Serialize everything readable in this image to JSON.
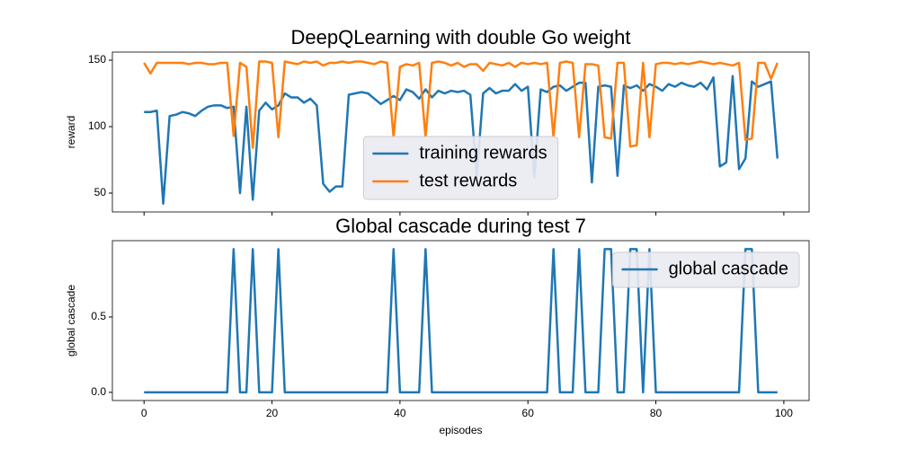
{
  "chart_data": [
    {
      "type": "line",
      "title": "DeepQLearning with double Go weight",
      "ylabel": "reward",
      "x": [
        0,
        1,
        2,
        3,
        4,
        5,
        6,
        7,
        8,
        9,
        10,
        11,
        12,
        13,
        14,
        15,
        16,
        17,
        18,
        19,
        20,
        21,
        22,
        23,
        24,
        25,
        26,
        27,
        28,
        29,
        30,
        31,
        32,
        33,
        34,
        35,
        36,
        37,
        38,
        39,
        40,
        41,
        42,
        43,
        44,
        45,
        46,
        47,
        48,
        49,
        50,
        51,
        52,
        53,
        54,
        55,
        56,
        57,
        58,
        59,
        60,
        61,
        62,
        63,
        64,
        65,
        66,
        67,
        68,
        69,
        70,
        71,
        72,
        73,
        74,
        75,
        76,
        77,
        78,
        79,
        80,
        81,
        82,
        83,
        84,
        85,
        86,
        87,
        88,
        89,
        90,
        91,
        92,
        93,
        94,
        95,
        96,
        97,
        98,
        99
      ],
      "series": [
        {
          "name": "training rewards",
          "color": "#1f77b4",
          "values": [
            111,
            111,
            112,
            42,
            108,
            109,
            111,
            110,
            108,
            112,
            115,
            116,
            116,
            114,
            115,
            50,
            115,
            45,
            112,
            118,
            113,
            116,
            125,
            122,
            122,
            118,
            121,
            116,
            57,
            51,
            55,
            55,
            124,
            125,
            126,
            125,
            121,
            117,
            120,
            123,
            120,
            128,
            126,
            121,
            128,
            122,
            127,
            125,
            127,
            126,
            127,
            124,
            63,
            125,
            129,
            125,
            127,
            127,
            132,
            127,
            130,
            62,
            128,
            126,
            130,
            131,
            127,
            130,
            133,
            133,
            58,
            130,
            131,
            130,
            63,
            131,
            129,
            131,
            127,
            132,
            130,
            127,
            132,
            130,
            133,
            131,
            130,
            133,
            128,
            137,
            70,
            73,
            138,
            68,
            76,
            134,
            130,
            132,
            134,
            76
          ]
        },
        {
          "name": "test rewards",
          "color": "#ff7f0e",
          "values": [
            148,
            140,
            148,
            148,
            148,
            148,
            148,
            147,
            148,
            148,
            147,
            147,
            148,
            148,
            93,
            148,
            145,
            84,
            149,
            149,
            148,
            92,
            149,
            148,
            147,
            149,
            148,
            149,
            146,
            148,
            148,
            149,
            148,
            149,
            149,
            148,
            147,
            149,
            148,
            92,
            145,
            147,
            146,
            148,
            92,
            148,
            149,
            148,
            146,
            148,
            145,
            147,
            147,
            142,
            148,
            147,
            146,
            148,
            145,
            148,
            147,
            148,
            147,
            148,
            92,
            148,
            149,
            148,
            92,
            147,
            147,
            146,
            92,
            91,
            148,
            148,
            85,
            86,
            148,
            92,
            147,
            148,
            148,
            147,
            148,
            147,
            148,
            149,
            148,
            147,
            148,
            147,
            146,
            148,
            90,
            91,
            148,
            148,
            136,
            148
          ]
        }
      ],
      "xlim": [
        -4.95,
        103.95
      ],
      "ylim": [
        35.8,
        156.1
      ],
      "yticks": [
        50,
        100,
        150
      ],
      "legend": "lower center"
    },
    {
      "type": "line",
      "title": "Global cascade during test 7",
      "ylabel": "global cascade",
      "xlabel": "episodes",
      "x": [
        0,
        1,
        2,
        3,
        4,
        5,
        6,
        7,
        8,
        9,
        10,
        11,
        12,
        13,
        14,
        15,
        16,
        17,
        18,
        19,
        20,
        21,
        22,
        23,
        24,
        25,
        26,
        27,
        28,
        29,
        30,
        31,
        32,
        33,
        34,
        35,
        36,
        37,
        38,
        39,
        40,
        41,
        42,
        43,
        44,
        45,
        46,
        47,
        48,
        49,
        50,
        51,
        52,
        53,
        54,
        55,
        56,
        57,
        58,
        59,
        60,
        61,
        62,
        63,
        64,
        65,
        66,
        67,
        68,
        69,
        70,
        71,
        72,
        73,
        74,
        75,
        76,
        77,
        78,
        79,
        80,
        81,
        82,
        83,
        84,
        85,
        86,
        87,
        88,
        89,
        90,
        91,
        92,
        93,
        94,
        95,
        96,
        97,
        98,
        99
      ],
      "series": [
        {
          "name": "global cascade",
          "color": "#1f77b4",
          "values": [
            0,
            0,
            0,
            0,
            0,
            0,
            0,
            0,
            0,
            0,
            0,
            0,
            0,
            0,
            0.95,
            0,
            0,
            0.95,
            0,
            0,
            0,
            0.95,
            0,
            0,
            0,
            0,
            0,
            0,
            0,
            0,
            0,
            0,
            0,
            0,
            0,
            0,
            0,
            0,
            0,
            0.95,
            0,
            0,
            0,
            0,
            0.95,
            0,
            0,
            0,
            0,
            0,
            0,
            0,
            0,
            0,
            0,
            0,
            0,
            0,
            0,
            0,
            0,
            0,
            0,
            0,
            0.95,
            0,
            0,
            0,
            0.95,
            0,
            0,
            0,
            0.95,
            0.95,
            0,
            0,
            0.95,
            0.95,
            0,
            0.95,
            0,
            0,
            0,
            0,
            0,
            0,
            0,
            0,
            0,
            0,
            0,
            0,
            0,
            0,
            0.95,
            0.95,
            0,
            0,
            0,
            0
          ]
        }
      ],
      "xlim": [
        -4.95,
        103.95
      ],
      "ylim": [
        -0.054,
        1.006
      ],
      "xticks": [
        0,
        20,
        40,
        60,
        80,
        100
      ],
      "yticks": [
        {
          "value": 0,
          "label": "0.0"
        },
        {
          "value": 0.5,
          "label": "0.5"
        }
      ],
      "legend": "upper right"
    }
  ]
}
